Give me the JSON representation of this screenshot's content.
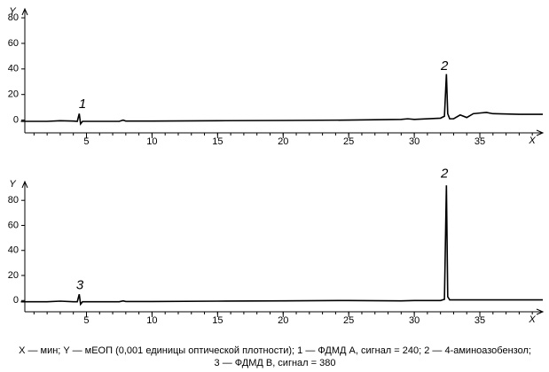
{
  "chart_data": [
    {
      "type": "line",
      "ylabel": "Y",
      "xlabel": "X",
      "xlim": [
        0.3,
        39.8
      ],
      "ylim": [
        -10,
        87
      ],
      "xticks": [
        5,
        10,
        15,
        20,
        25,
        30,
        35
      ],
      "yticks": [
        0,
        20,
        40,
        60,
        80
      ],
      "xminor_step": 1,
      "series": [
        {
          "color": "#000000",
          "x": [
            0,
            2,
            3,
            4,
            4.3,
            4.45,
            4.55,
            4.7,
            5,
            6,
            7.5,
            7.8,
            8,
            10,
            15,
            20,
            25,
            29,
            29.5,
            30,
            32,
            32.3,
            32.45,
            32.55,
            32.7,
            33,
            33.5,
            34,
            34.5,
            35,
            35.5,
            36,
            38,
            39.8
          ],
          "values": [
            -1,
            -1,
            -0.5,
            -0.8,
            -1,
            5,
            -3,
            -1,
            -1,
            -1,
            -1,
            0,
            -0.8,
            -0.8,
            -0.5,
            -0.3,
            0,
            0.5,
            1,
            0.5,
            1.5,
            3,
            36,
            5,
            1,
            1,
            4,
            2,
            5,
            5.5,
            6,
            5,
            4.5,
            4.5
          ]
        }
      ],
      "annotations": [
        {
          "text": "1",
          "x": 4.7,
          "y": 12
        },
        {
          "text": "2",
          "x": 32.3,
          "y": 42
        }
      ]
    },
    {
      "type": "line",
      "ylabel": "Y",
      "xlabel": "X",
      "xlim": [
        0.3,
        39.8
      ],
      "ylim": [
        -9,
        95
      ],
      "xticks": [
        5,
        10,
        15,
        20,
        25,
        30,
        35
      ],
      "yticks": [
        0,
        20,
        40,
        60,
        80
      ],
      "xminor_step": 1,
      "series": [
        {
          "color": "#000000",
          "x": [
            0,
            2,
            3,
            4,
            4.3,
            4.45,
            4.55,
            4.7,
            5,
            7.5,
            7.8,
            8,
            10,
            15,
            20,
            25,
            29,
            30,
            32,
            32.3,
            32.45,
            32.55,
            32.7,
            33,
            35,
            39.8
          ],
          "values": [
            -1,
            -1,
            -0.5,
            -1,
            -1,
            5,
            -3,
            -1,
            -1,
            -1,
            -0.3,
            -0.8,
            -0.8,
            -0.5,
            -0.3,
            0,
            -0.3,
            0,
            0,
            1,
            92,
            3,
            0.5,
            0.5,
            0.5,
            0.5
          ]
        }
      ],
      "annotations": [
        {
          "text": "3",
          "x": 4.5,
          "y": 12
        },
        {
          "text": "2",
          "x": 32.3,
          "y": 101
        }
      ]
    }
  ],
  "caption": "X — мин; Y — мЕОП (0,001 единицы оптической плотности); 1 — ФДМД А, сигнал = 240; 2 — 4-аминоазобензол; 3 — ФДМД В, сигнал = 380"
}
